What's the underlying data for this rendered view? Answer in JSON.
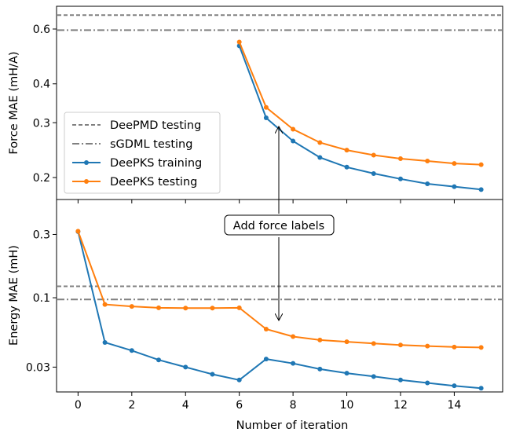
{
  "chart_data": [
    {
      "type": "line",
      "ylabel": "Force MAE (mH/A)",
      "yscale": "log",
      "ylim": [
        0.17,
        0.71
      ],
      "xlim": [
        -0.8,
        15.8
      ],
      "yticks": [
        0.2,
        0.3,
        0.4,
        0.6
      ],
      "ytick_labels": [
        "0.2",
        "0.3",
        "0.4",
        "0.6"
      ],
      "hlines": [
        {
          "name": "DeePMD testing",
          "value": 0.665,
          "style": "dashed",
          "color": "#808080"
        },
        {
          "name": "sGDML testing",
          "value": 0.595,
          "style": "dashdot",
          "color": "#808080"
        }
      ],
      "series": [
        {
          "name": "DeePKS training",
          "color": "#1f77b4",
          "x": [
            6,
            7,
            8,
            9,
            10,
            11,
            12,
            13,
            14,
            15
          ],
          "values": [
            0.53,
            0.311,
            0.262,
            0.232,
            0.216,
            0.206,
            0.198,
            0.191,
            0.187,
            0.183
          ]
        },
        {
          "name": "DeePKS testing",
          "color": "#ff7f0e",
          "x": [
            6,
            7,
            8,
            9,
            10,
            11,
            12,
            13,
            14,
            15
          ],
          "values": [
            0.545,
            0.336,
            0.286,
            0.259,
            0.245,
            0.236,
            0.23,
            0.226,
            0.222,
            0.22
          ]
        }
      ],
      "legend": {
        "placement": "lower-left",
        "entries": [
          {
            "label": "DeePMD testing",
            "style": "dashed",
            "color": "#808080"
          },
          {
            "label": "sGDML testing",
            "style": "dashdot",
            "color": "#808080"
          },
          {
            "label": "DeePKS training",
            "style": "line-marker",
            "color": "#1f77b4"
          },
          {
            "label": "DeePKS testing",
            "style": "line-marker",
            "color": "#ff7f0e"
          }
        ]
      }
    },
    {
      "type": "line",
      "xlabel": "Number of iteration",
      "ylabel": "Energy MAE (mH)",
      "yscale": "log",
      "ylim": [
        0.0195,
        0.55
      ],
      "xlim": [
        -0.8,
        15.8
      ],
      "xticks": [
        0,
        2,
        4,
        6,
        8,
        10,
        12,
        14
      ],
      "xtick_labels": [
        "0",
        "2",
        "4",
        "6",
        "8",
        "10",
        "12",
        "14"
      ],
      "yticks": [
        0.03,
        0.1,
        0.3
      ],
      "ytick_labels": [
        "0.03",
        "0.1",
        "0.3"
      ],
      "hlines": [
        {
          "name": "DeePMD testing",
          "value": 0.122,
          "style": "dashed",
          "color": "#808080"
        },
        {
          "name": "sGDML testing",
          "value": 0.097,
          "style": "dashdot",
          "color": "#808080"
        }
      ],
      "series": [
        {
          "name": "DeePKS training",
          "color": "#1f77b4",
          "x": [
            0,
            1,
            2,
            3,
            4,
            5,
            6,
            7,
            8,
            9,
            10,
            11,
            12,
            13,
            14,
            15
          ],
          "values": [
            0.315,
            0.046,
            0.04,
            0.034,
            0.03,
            0.0265,
            0.024,
            0.0345,
            0.032,
            0.029,
            0.027,
            0.0255,
            0.024,
            0.0228,
            0.0217,
            0.0208
          ]
        },
        {
          "name": "DeePKS testing",
          "color": "#ff7f0e",
          "x": [
            0,
            1,
            2,
            3,
            4,
            5,
            6,
            7,
            8,
            9,
            10,
            11,
            12,
            13,
            14,
            15
          ],
          "values": [
            0.317,
            0.089,
            0.086,
            0.084,
            0.0835,
            0.0835,
            0.084,
            0.058,
            0.051,
            0.048,
            0.0466,
            0.0452,
            0.044,
            0.0432,
            0.0425,
            0.0422
          ]
        }
      ]
    }
  ],
  "annotation": {
    "text": "Add force labels",
    "x": 7
  }
}
